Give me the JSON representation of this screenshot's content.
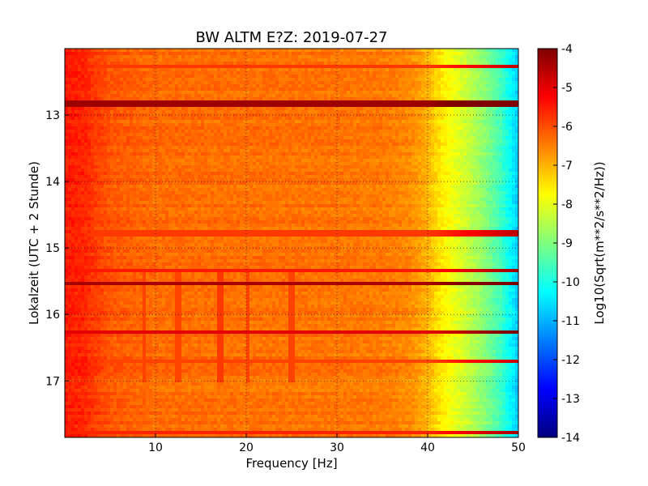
{
  "chart_data": {
    "type": "heatmap",
    "title": "BW ALTM E?Z: 2019-07-27",
    "xlabel": "Frequency [Hz]",
    "ylabel": "Lokalzeit (UTC + 2 Stunde)",
    "xlim": [
      0,
      50
    ],
    "ylim": [
      17.85,
      12.0
    ],
    "y_inverted": true,
    "x_ticks": [
      "10",
      "20",
      "30",
      "40",
      "50"
    ],
    "y_ticks": [
      "13",
      "14",
      "15",
      "16",
      "17"
    ],
    "x_tick_values": [
      10,
      20,
      30,
      40,
      50
    ],
    "y_tick_values": [
      13,
      14,
      15,
      16,
      17
    ],
    "grid": true,
    "colormap": "jet",
    "colorbar": {
      "label": "Log10(Sqrt(m**2/s**2/Hz))",
      "range": [
        -14,
        -4
      ],
      "ticks": [
        "-4",
        "-5",
        "-6",
        "-7",
        "-8",
        "-9",
        "-10",
        "-11",
        "-12",
        "-13",
        "-14"
      ],
      "tick_values": [
        -4,
        -5,
        -6,
        -7,
        -8,
        -9,
        -10,
        -11,
        -12,
        -13,
        -14
      ]
    },
    "frequency_profile": {
      "freq_hz": [
        0,
        2,
        5,
        10,
        20,
        30,
        35,
        38,
        40,
        41,
        42,
        44,
        46,
        48,
        49,
        50
      ],
      "level": [
        -5.5,
        -5.6,
        -6.1,
        -6.3,
        -6.35,
        -6.4,
        -6.45,
        -6.6,
        -7.0,
        -7.4,
        -7.7,
        -8.2,
        -8.8,
        -9.6,
        -10.2,
        -10.8
      ]
    },
    "horizontal_bands": [
      {
        "time_h": 12.25,
        "level": -5.8
      },
      {
        "time_h": 12.83,
        "level": -4.3
      },
      {
        "time_h": 14.78,
        "level": -5.8
      },
      {
        "time_h": 15.33,
        "level": -5.5
      },
      {
        "time_h": 15.52,
        "level": -4.4
      },
      {
        "time_h": 16.28,
        "level": -5.0
      },
      {
        "time_h": 16.72,
        "level": -5.9
      },
      {
        "time_h": 17.78,
        "level": -5.6
      }
    ],
    "vertical_lines": [
      {
        "freq_hz": 8.8,
        "level": -5.9
      },
      {
        "freq_hz": 12.5,
        "level": -5.9
      },
      {
        "freq_hz": 17.2,
        "level": -5.8
      },
      {
        "freq_hz": 20.2,
        "level": -5.9
      },
      {
        "freq_hz": 25.0,
        "level": -5.9
      }
    ]
  },
  "colors": {
    "jet_stops": [
      "#00007f",
      "#0000ff",
      "#007fff",
      "#00ffff",
      "#7fff7f",
      "#ffff00",
      "#ff7f00",
      "#ff0000",
      "#7f0000"
    ]
  }
}
